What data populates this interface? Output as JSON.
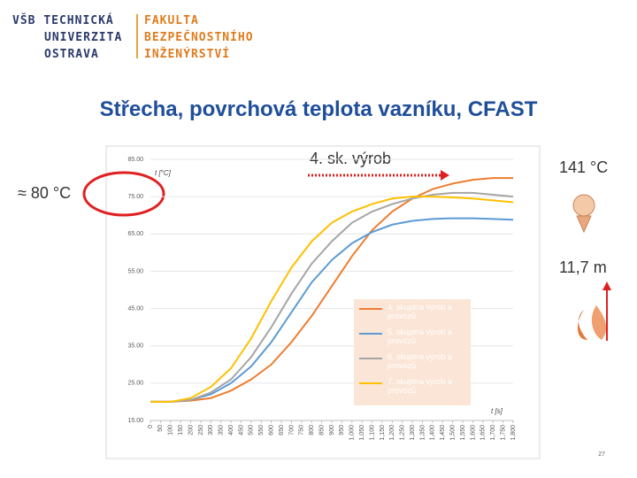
{
  "header": {
    "university": [
      "VŠB",
      "TECHNICKÁ",
      "UNIVERZITA",
      "OSTRAVA"
    ],
    "faculty": [
      "FAKULTA",
      "BEZPEČNOSTNÍHO",
      "INŽENÝRSTVÍ"
    ]
  },
  "title": "Střecha, povrchová teplota vazníku, CFAST",
  "annotations": {
    "left": "≈ 80 °C",
    "arrow": "4. sk. výrob",
    "temperature": "141 °C",
    "height": "11,7 m"
  },
  "page_number": "27",
  "chart_data": {
    "type": "line",
    "y_label": "t [°C]",
    "x_label": "t [s]",
    "x": [
      0,
      100,
      200,
      300,
      400,
      500,
      600,
      700,
      800,
      900,
      1000,
      1100,
      1200,
      1300,
      1400,
      1500,
      1600,
      1700,
      1800
    ],
    "series": [
      {
        "name": "4. skupina výrob a provozů",
        "color": "#ed7d31",
        "values": [
          20,
          20,
          20.3,
          21,
          23,
          26,
          30,
          36,
          43,
          51,
          59,
          66,
          71,
          74.5,
          77,
          78.5,
          79.5,
          80,
          80
        ]
      },
      {
        "name": "5. skupina výrob a provozů",
        "color": "#5b9bd5",
        "values": [
          20,
          20,
          20.5,
          22,
          25,
          29.5,
          36,
          44,
          52,
          58,
          62.5,
          65.5,
          67.5,
          68.5,
          69,
          69.2,
          69.2,
          69,
          68.8
        ]
      },
      {
        "name": "6. skupina výrob a provozů",
        "color": "#a5a5a5",
        "values": [
          20,
          20,
          20.5,
          22.5,
          26,
          32,
          40,
          49,
          57,
          63,
          68,
          71,
          73,
          74.5,
          75.5,
          76,
          76,
          75.5,
          75
        ]
      },
      {
        "name": "7. skupina výrob a provozů",
        "color": "#ffc000",
        "values": [
          20,
          20,
          21,
          24,
          29,
          37,
          47,
          56,
          63,
          68,
          71,
          73,
          74.5,
          75,
          75,
          74.8,
          74.5,
          74,
          73.5
        ]
      }
    ],
    "xlim": [
      0,
      1800
    ],
    "xticks": [
      0,
      50,
      100,
      150,
      200,
      250,
      300,
      350,
      400,
      450,
      500,
      550,
      600,
      650,
      700,
      750,
      800,
      850,
      900,
      950,
      {
        "value": 1000,
        "label": "1,000"
      },
      {
        "value": 1050,
        "label": "1,050"
      },
      {
        "value": 1100,
        "label": "1,100"
      },
      {
        "value": 1150,
        "label": "1,150"
      },
      {
        "value": 1200,
        "label": "1,200"
      },
      {
        "value": 1250,
        "label": "1,250"
      },
      {
        "value": 1300,
        "label": "1,300"
      },
      {
        "value": 1350,
        "label": "1,350"
      },
      {
        "value": 1400,
        "label": "1,400"
      },
      {
        "value": 1450,
        "label": "1,450"
      },
      {
        "value": 1500,
        "label": "1,500"
      },
      {
        "value": 1550,
        "label": "1,550"
      },
      {
        "value": 1600,
        "label": "1,600"
      },
      {
        "value": 1650,
        "label": "1,650"
      },
      {
        "value": 1700,
        "label": "1,700"
      },
      {
        "value": 1750,
        "label": "1,750"
      },
      {
        "value": 1800,
        "label": "1,800"
      }
    ],
    "ylim": [
      15,
      85
    ],
    "yticks": [
      {
        "value": 15,
        "label": "15.00"
      },
      {
        "value": 25,
        "label": "25.00"
      },
      {
        "value": 35,
        "label": "35.00"
      },
      {
        "value": 45,
        "label": "45.00"
      },
      {
        "value": 55,
        "label": "55.00"
      },
      {
        "value": 65,
        "label": "65.00"
      },
      {
        "value": 75,
        "label": "75.00"
      },
      {
        "value": 85,
        "label": "85.00"
      }
    ],
    "grid": true
  }
}
